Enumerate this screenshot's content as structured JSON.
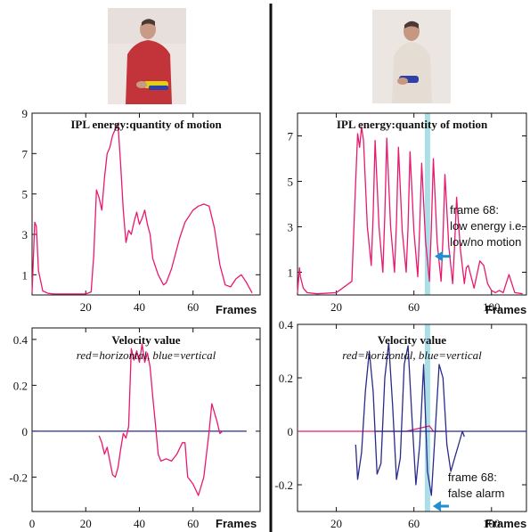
{
  "chart_data": [
    {
      "type": "line",
      "panel": "left-top",
      "title": "IPL energy:quantity of motion",
      "xlabel": "Frames",
      "xlim": [
        0,
        85
      ],
      "ylim": [
        0,
        9
      ],
      "xticks": [
        "20",
        "40",
        "60"
      ],
      "xtick_values": [
        20,
        40,
        60
      ],
      "yticks": [
        "1",
        "3",
        "5",
        "7",
        "9"
      ],
      "ytick_values": [
        1,
        3,
        5,
        7,
        9
      ],
      "series": [
        {
          "color": "#e8196e",
          "x": [
            0,
            1,
            1.6,
            2.4,
            4,
            6,
            8,
            12,
            20,
            22,
            23,
            24,
            25,
            26,
            27,
            28,
            29,
            30,
            31,
            32,
            33,
            34,
            35,
            36,
            37,
            38,
            39,
            40,
            41,
            42,
            43,
            44,
            45,
            47,
            49,
            50,
            52,
            55,
            57,
            60,
            62,
            64,
            66,
            68,
            70,
            72,
            74,
            76,
            78,
            80,
            82
          ],
          "y": [
            0.1,
            3.6,
            3.4,
            1.2,
            0.2,
            0.08,
            0.05,
            0.05,
            0.05,
            0.15,
            2,
            5.2,
            4.8,
            4.2,
            5.8,
            7,
            7.3,
            7.9,
            8.2,
            8.5,
            6.5,
            4.2,
            2.6,
            3.2,
            3,
            3.6,
            4.1,
            3.5,
            3.8,
            4.2,
            3.5,
            3,
            1.8,
            1,
            0.5,
            0.6,
            1.3,
            2.8,
            3.6,
            4.2,
            4.4,
            4.5,
            4.4,
            3.3,
            1.5,
            0.5,
            0.4,
            0.8,
            1,
            0.6,
            0.1
          ]
        }
      ]
    },
    {
      "type": "line",
      "panel": "right-top",
      "title": "IPL energy:quantity of motion",
      "xlabel": "Frames",
      "xlim": [
        0,
        118
      ],
      "ylim": [
        0,
        8
      ],
      "xticks": [
        "20",
        "60",
        "100"
      ],
      "xtick_values": [
        20,
        60,
        100
      ],
      "yticks": [
        "1",
        "3",
        "5",
        "7"
      ],
      "ytick_values": [
        1,
        3,
        5,
        7
      ],
      "highlight_x": 67,
      "annotations": [
        {
          "text": [
            "frame 68:",
            "low energy i.e.",
            "low/no motion"
          ],
          "target_x": 68,
          "target_y": 1.7
        }
      ],
      "series": [
        {
          "color": "#e8196e",
          "x": [
            0,
            1,
            1.5,
            3,
            5,
            10,
            20,
            28,
            30,
            31,
            32,
            33,
            34,
            36,
            38,
            39,
            40,
            42,
            44,
            45,
            46,
            48,
            50,
            51,
            52,
            54,
            56,
            57,
            58,
            60,
            62,
            63,
            64,
            66,
            68,
            69,
            70,
            72,
            74,
            75,
            76,
            78,
            80,
            81,
            82,
            84,
            86,
            87,
            88,
            91,
            94,
            96,
            98,
            100,
            102,
            104,
            106,
            109,
            112,
            116
          ],
          "y": [
            0.1,
            1.2,
            0.8,
            0.3,
            0.1,
            0.05,
            0.1,
            0.6,
            5,
            7.1,
            6.5,
            7.4,
            6.8,
            3,
            1.3,
            3.5,
            6.8,
            3,
            1,
            3.5,
            6.9,
            3,
            1,
            3.2,
            6.5,
            2.8,
            1,
            3,
            6.3,
            2.8,
            0.8,
            3,
            5.8,
            2.4,
            0.6,
            3,
            6,
            2.3,
            0.6,
            2.5,
            5.3,
            2.1,
            0.5,
            2.2,
            4.3,
            2,
            0.5,
            1.2,
            1.3,
            0.3,
            1.5,
            1.3,
            0.5,
            0.2,
            0.1,
            0.2,
            0.1,
            0.9,
            0.1,
            0.05
          ]
        }
      ]
    },
    {
      "type": "line",
      "panel": "left-bottom",
      "title": "Velocity value",
      "subtitle": "red=horizontal, blue=vertical",
      "xlabel": "Frames",
      "xlim": [
        0,
        85
      ],
      "ylim": [
        -0.35,
        0.45
      ],
      "xticks": [
        "0",
        "20",
        "40",
        "60"
      ],
      "xtick_values": [
        0,
        20,
        40,
        60
      ],
      "yticks": [
        "0.4",
        "0.2",
        "0",
        "-0.2"
      ],
      "ytick_values": [
        0.4,
        0.2,
        0,
        -0.2
      ],
      "series": [
        {
          "color": "#2a2a8c",
          "x": [
            0,
            80
          ],
          "y": [
            0,
            0
          ]
        },
        {
          "color": "#e8196e",
          "x": [
            25,
            26,
            27,
            28,
            29,
            30,
            31,
            32,
            33,
            34,
            35,
            36,
            37,
            38,
            39,
            40,
            41,
            42,
            43,
            44,
            45,
            46,
            47,
            48,
            50,
            52,
            54,
            56,
            57,
            58,
            60,
            62,
            64,
            66,
            67,
            68,
            69,
            70,
            71
          ],
          "y": [
            -0.02,
            -0.05,
            -0.1,
            -0.07,
            -0.13,
            -0.19,
            -0.2,
            -0.16,
            -0.08,
            -0.01,
            -0.03,
            0.02,
            0.36,
            0.31,
            0.35,
            0.3,
            0.38,
            0.3,
            0.34,
            0.28,
            0.15,
            0.03,
            -0.1,
            -0.13,
            -0.12,
            -0.13,
            -0.1,
            -0.05,
            -0.05,
            -0.2,
            -0.23,
            -0.28,
            -0.2,
            0,
            0.12,
            0.08,
            0.04,
            -0.01,
            0
          ]
        }
      ]
    },
    {
      "type": "line",
      "panel": "right-bottom",
      "title": "Velocity value",
      "subtitle": "red=horizontal, blue=vertical",
      "xlabel": "Frames",
      "xlim": [
        0,
        118
      ],
      "ylim": [
        -0.3,
        0.4
      ],
      "xticks": [
        "20",
        "60",
        "100"
      ],
      "xtick_values": [
        20,
        60,
        100
      ],
      "yticks": [
        "0.4",
        "0.2",
        "0",
        "-0.2"
      ],
      "ytick_values": [
        0.4,
        0.2,
        0,
        -0.2
      ],
      "highlight_x": 67,
      "annotations": [
        {
          "text": [
            "frame 68:",
            "false alarm"
          ],
          "target_x": 67,
          "target_y": -0.28
        }
      ],
      "series": [
        {
          "color": "#e8196e",
          "x": [
            0,
            40,
            50,
            54,
            56,
            68,
            70,
            76
          ],
          "y": [
            0,
            0,
            0,
            0,
            0,
            0.02,
            0,
            0
          ]
        },
        {
          "color": "#2a2a8c",
          "x": [
            40,
            76
          ],
          "y": [
            0,
            0
          ]
        },
        {
          "color": "#2a2a8c",
          "x": [
            76,
            118
          ],
          "y": [
            0,
            0
          ]
        },
        {
          "color": "#2a2a8c",
          "x": [
            30,
            31,
            33,
            35,
            37,
            39,
            41,
            43,
            45,
            47,
            49,
            51,
            53,
            55,
            57,
            59,
            61,
            63,
            65,
            67,
            69,
            71,
            73,
            75,
            77,
            79,
            81,
            83,
            85,
            86
          ],
          "y": [
            -0.05,
            -0.18,
            -0.08,
            0.15,
            0.3,
            0.15,
            -0.16,
            -0.12,
            0.2,
            0.33,
            0.1,
            -0.18,
            -0.1,
            0.25,
            0.32,
            0.05,
            -0.2,
            -0.05,
            0.25,
            -0.15,
            -0.24,
            0,
            0.25,
            0.2,
            -0.05,
            -0.15,
            -0.1,
            -0.05,
            0,
            -0.02
          ]
        }
      ]
    }
  ],
  "colors": {
    "energy_line": "#e8196e",
    "horizontal_velocity": "#e8196e",
    "vertical_velocity": "#2a2a8c",
    "highlight_band": "#8fd4e0",
    "arrow": "#1e8fd0",
    "divider": "#111111"
  },
  "images": [
    {
      "name": "left-person-photo",
      "description": "person in red shirt holding a yellow and blue object"
    },
    {
      "name": "right-person-photo",
      "description": "person in white shirt holding a blue object"
    }
  ]
}
